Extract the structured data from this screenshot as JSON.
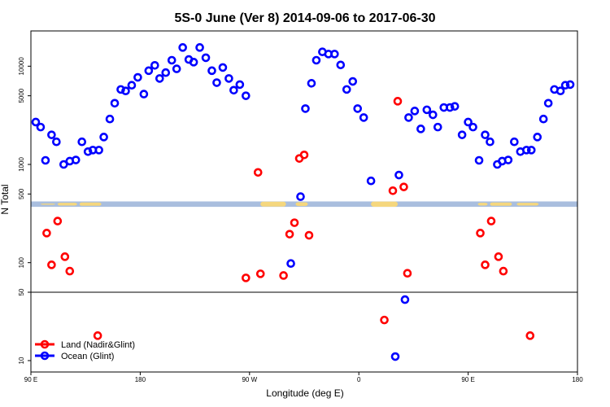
{
  "chart_data": {
    "type": "scatter",
    "title": "5S-0 June (Ver 8)   2014-09-06 to 2017-06-30",
    "xlabel": "Longitude (deg E)",
    "ylabel": "N Total",
    "y_scale": "log",
    "y_threshold_line": 50,
    "x_ticks": [
      {
        "value": 90,
        "label": "90 E"
      },
      {
        "value": 180,
        "label": "180"
      },
      {
        "value": 270,
        "label": "90 W"
      },
      {
        "value": 360,
        "label": "0"
      },
      {
        "value": 450,
        "label": "90 E"
      },
      {
        "value": 540,
        "label": "180"
      }
    ],
    "xlim": [
      90,
      540
    ],
    "y_ticks": [
      10,
      50,
      100,
      500,
      1000,
      5000,
      10000
    ],
    "map_band_y_range": [
      370,
      420
    ],
    "colors": {
      "land": "#ff0000",
      "ocean": "#0000ff",
      "map_ocean": "#a9bede",
      "map_land": "#f5d77e"
    },
    "series": [
      {
        "name": "Land (Nadir&Glint)",
        "color": "#ff0000",
        "points": [
          {
            "x": 103,
            "y": 200
          },
          {
            "x": 107,
            "y": 95
          },
          {
            "x": 112,
            "y": 265
          },
          {
            "x": 118,
            "y": 115
          },
          {
            "x": 122,
            "y": 82
          },
          {
            "x": 145,
            "y": 18
          },
          {
            "x": 267,
            "y": 70
          },
          {
            "x": 277,
            "y": 830
          },
          {
            "x": 279,
            "y": 77
          },
          {
            "x": 298,
            "y": 74
          },
          {
            "x": 303,
            "y": 195
          },
          {
            "x": 307,
            "y": 255
          },
          {
            "x": 311,
            "y": 1150
          },
          {
            "x": 315,
            "y": 1250
          },
          {
            "x": 319,
            "y": 190
          },
          {
            "x": 381,
            "y": 26
          },
          {
            "x": 388,
            "y": 540
          },
          {
            "x": 392,
            "y": 4400
          },
          {
            "x": 397,
            "y": 590
          },
          {
            "x": 400,
            "y": 78
          },
          {
            "x": 460,
            "y": 200
          },
          {
            "x": 464,
            "y": 95
          },
          {
            "x": 469,
            "y": 265
          },
          {
            "x": 475,
            "y": 115
          },
          {
            "x": 479,
            "y": 82
          },
          {
            "x": 501,
            "y": 18
          }
        ]
      },
      {
        "name": "Ocean (Glint)",
        "color": "#0000ff",
        "points": [
          {
            "x": 94,
            "y": 2700
          },
          {
            "x": 98,
            "y": 2400
          },
          {
            "x": 102,
            "y": 1100
          },
          {
            "x": 107,
            "y": 2000
          },
          {
            "x": 111,
            "y": 1700
          },
          {
            "x": 117,
            "y": 1000
          },
          {
            "x": 122,
            "y": 1080
          },
          {
            "x": 127,
            "y": 1110
          },
          {
            "x": 132,
            "y": 1700
          },
          {
            "x": 137,
            "y": 1350
          },
          {
            "x": 141,
            "y": 1400
          },
          {
            "x": 146,
            "y": 1400
          },
          {
            "x": 150,
            "y": 1900
          },
          {
            "x": 155,
            "y": 2900
          },
          {
            "x": 159,
            "y": 4200
          },
          {
            "x": 164,
            "y": 5800
          },
          {
            "x": 168,
            "y": 5600
          },
          {
            "x": 173,
            "y": 6400
          },
          {
            "x": 178,
            "y": 7700
          },
          {
            "x": 183,
            "y": 5200
          },
          {
            "x": 187,
            "y": 9000
          },
          {
            "x": 192,
            "y": 10200
          },
          {
            "x": 196,
            "y": 7500
          },
          {
            "x": 201,
            "y": 8600
          },
          {
            "x": 206,
            "y": 11500
          },
          {
            "x": 210,
            "y": 9400
          },
          {
            "x": 215,
            "y": 15500
          },
          {
            "x": 220,
            "y": 11700
          },
          {
            "x": 224,
            "y": 11000
          },
          {
            "x": 229,
            "y": 15500
          },
          {
            "x": 234,
            "y": 12200
          },
          {
            "x": 239,
            "y": 9000
          },
          {
            "x": 243,
            "y": 6800
          },
          {
            "x": 248,
            "y": 9700
          },
          {
            "x": 253,
            "y": 7500
          },
          {
            "x": 257,
            "y": 5700
          },
          {
            "x": 262,
            "y": 6500
          },
          {
            "x": 267,
            "y": 5000
          },
          {
            "x": 304,
            "y": 98
          },
          {
            "x": 312,
            "y": 470
          },
          {
            "x": 316,
            "y": 3700
          },
          {
            "x": 321,
            "y": 6700
          },
          {
            "x": 325,
            "y": 11500
          },
          {
            "x": 330,
            "y": 14000
          },
          {
            "x": 335,
            "y": 13300
          },
          {
            "x": 340,
            "y": 13300
          },
          {
            "x": 345,
            "y": 10300
          },
          {
            "x": 350,
            "y": 5800
          },
          {
            "x": 355,
            "y": 7000
          },
          {
            "x": 359,
            "y": 3700
          },
          {
            "x": 364,
            "y": 3000
          },
          {
            "x": 370,
            "y": 680
          },
          {
            "x": 390,
            "y": 11
          },
          {
            "x": 393,
            "y": 780
          },
          {
            "x": 398,
            "y": 42
          },
          {
            "x": 401,
            "y": 3000
          },
          {
            "x": 406,
            "y": 3500
          },
          {
            "x": 411,
            "y": 2300
          },
          {
            "x": 416,
            "y": 3600
          },
          {
            "x": 421,
            "y": 3200
          },
          {
            "x": 425,
            "y": 2400
          },
          {
            "x": 430,
            "y": 3800
          },
          {
            "x": 435,
            "y": 3800
          },
          {
            "x": 439,
            "y": 3900
          },
          {
            "x": 445,
            "y": 2000
          },
          {
            "x": 450,
            "y": 2700
          },
          {
            "x": 454,
            "y": 2400
          },
          {
            "x": 459,
            "y": 1100
          },
          {
            "x": 464,
            "y": 2000
          },
          {
            "x": 468,
            "y": 1700
          },
          {
            "x": 474,
            "y": 1000
          },
          {
            "x": 478,
            "y": 1080
          },
          {
            "x": 483,
            "y": 1110
          },
          {
            "x": 488,
            "y": 1700
          },
          {
            "x": 493,
            "y": 1350
          },
          {
            "x": 498,
            "y": 1400
          },
          {
            "x": 502,
            "y": 1400
          },
          {
            "x": 507,
            "y": 1900
          },
          {
            "x": 512,
            "y": 2900
          },
          {
            "x": 516,
            "y": 4200
          },
          {
            "x": 521,
            "y": 5800
          },
          {
            "x": 526,
            "y": 5600
          },
          {
            "x": 530,
            "y": 6400
          },
          {
            "x": 534,
            "y": 6500
          }
        ]
      }
    ],
    "legend": {
      "position": "bottom-left",
      "entries": [
        "Land (Nadir&Glint)",
        "Ocean (Glint)"
      ]
    }
  }
}
